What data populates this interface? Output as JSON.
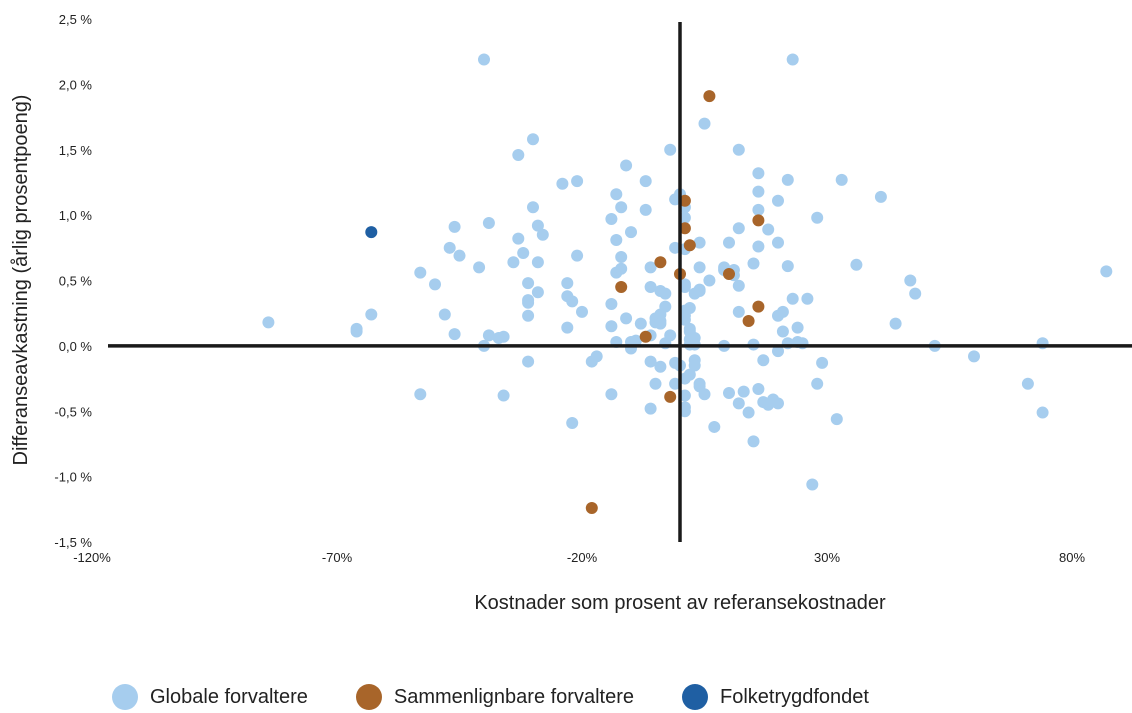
{
  "chart_data": {
    "type": "scatter",
    "xlabel": "Kostnader som prosent av referansekostnader",
    "ylabel": "Differanseavkastning (årlig prosentpoeng)",
    "xlim": [
      -120,
      90
    ],
    "ylim": [
      -1.5,
      2.5
    ],
    "x_ticks": [
      -120,
      -70,
      -20,
      30,
      80
    ],
    "x_tick_labels": [
      "-120%",
      "-70%",
      "-20%",
      "30%",
      "80%"
    ],
    "y_ticks": [
      2.5,
      2.0,
      1.5,
      1.0,
      0.5,
      0.0,
      -0.5,
      -1.0,
      -1.5
    ],
    "y_tick_labels": [
      "2,5 %",
      "2,0 %",
      "1,5 %",
      "1,0 %",
      "0,5 %",
      "0,0 %",
      "-0,5 %",
      "-1,0 %",
      "-1,5 %"
    ],
    "grid": false,
    "legend_position": "bottom",
    "series": [
      {
        "name": "Globale forvaltere",
        "color": "#a6cdee",
        "points": [
          [
            -84,
            0.18
          ],
          [
            -66,
            0.13
          ],
          [
            -66,
            0.11
          ],
          [
            -63,
            0.24
          ],
          [
            -53,
            0.56
          ],
          [
            -53,
            -0.37
          ],
          [
            -50,
            0.47
          ],
          [
            -48,
            0.24
          ],
          [
            -47,
            0.75
          ],
          [
            -46,
            0.91
          ],
          [
            -46,
            0.09
          ],
          [
            -45,
            0.69
          ],
          [
            -41,
            0.6
          ],
          [
            -40,
            2.19
          ],
          [
            -40,
            0.0
          ],
          [
            -39,
            0.94
          ],
          [
            -39,
            0.08
          ],
          [
            -37,
            0.06
          ],
          [
            -36,
            0.07
          ],
          [
            -36,
            -0.38
          ],
          [
            -34,
            0.64
          ],
          [
            -33,
            1.46
          ],
          [
            -33,
            0.82
          ],
          [
            -32,
            0.71
          ],
          [
            -31,
            0.48
          ],
          [
            -31,
            0.35
          ],
          [
            -31,
            0.33
          ],
          [
            -31,
            0.23
          ],
          [
            -31,
            -0.12
          ],
          [
            -30,
            1.58
          ],
          [
            -30,
            1.06
          ],
          [
            -29,
            0.92
          ],
          [
            -29,
            0.64
          ],
          [
            -29,
            0.41
          ],
          [
            -28,
            0.85
          ],
          [
            -24,
            1.24
          ],
          [
            -23,
            0.48
          ],
          [
            -23,
            0.38
          ],
          [
            -23,
            0.14
          ],
          [
            -22,
            -0.59
          ],
          [
            -22,
            0.34
          ],
          [
            -21,
            1.26
          ],
          [
            -21,
            0.69
          ],
          [
            -20,
            0.26
          ],
          [
            -18,
            -0.12
          ],
          [
            -17,
            -0.08
          ],
          [
            -14,
            -0.37
          ],
          [
            -14,
            0.97
          ],
          [
            -14,
            0.32
          ],
          [
            -14,
            0.15
          ],
          [
            -13,
            0.81
          ],
          [
            -13,
            1.16
          ],
          [
            -13,
            0.56
          ],
          [
            -13,
            0.03
          ],
          [
            -12,
            1.06
          ],
          [
            -12,
            0.68
          ],
          [
            -12,
            0.59
          ],
          [
            -11,
            0.21
          ],
          [
            -11,
            1.38
          ],
          [
            -10,
            0.87
          ],
          [
            -10,
            0.03
          ],
          [
            -10,
            -0.02
          ],
          [
            -9,
            0.04
          ],
          [
            -8,
            0.17
          ],
          [
            -7,
            1.26
          ],
          [
            -7,
            1.04
          ],
          [
            -6,
            0.08
          ],
          [
            -6,
            -0.12
          ],
          [
            -6,
            0.6
          ],
          [
            -6,
            0.45
          ],
          [
            -6,
            -0.48
          ],
          [
            -5,
            0.21
          ],
          [
            -5,
            0.18
          ],
          [
            -5,
            -0.29
          ],
          [
            -4,
            0.24
          ],
          [
            -4,
            0.19
          ],
          [
            -4,
            -0.16
          ],
          [
            -4,
            0.17
          ],
          [
            -4,
            0.42
          ],
          [
            -3,
            0.4
          ],
          [
            -3,
            0.3
          ],
          [
            -3,
            0.02
          ],
          [
            -2,
            1.5
          ],
          [
            -2,
            0.08
          ],
          [
            -1,
            0.75
          ],
          [
            -1,
            1.12
          ],
          [
            -1,
            -0.29
          ],
          [
            -1,
            -0.13
          ],
          [
            0,
            1.16
          ],
          [
            0,
            1.13
          ],
          [
            0,
            -0.15
          ],
          [
            1,
            0.74
          ],
          [
            1,
            0.47
          ],
          [
            1,
            0.45
          ],
          [
            1,
            0.27
          ],
          [
            1,
            -0.25
          ],
          [
            1,
            -0.47
          ],
          [
            1,
            1.06
          ],
          [
            1,
            -0.38
          ],
          [
            1,
            -0.5
          ],
          [
            1,
            0.98
          ],
          [
            1,
            0.23
          ],
          [
            1,
            0.2
          ],
          [
            2,
            0.13
          ],
          [
            2,
            0.11
          ],
          [
            2,
            0.05
          ],
          [
            2,
            0.01
          ],
          [
            2,
            -0.22
          ],
          [
            2,
            0.29
          ],
          [
            3,
            0.06
          ],
          [
            3,
            0.4
          ],
          [
            3,
            -0.11
          ],
          [
            3,
            -0.15
          ],
          [
            3,
            0.01
          ],
          [
            4,
            0.79
          ],
          [
            4,
            0.6
          ],
          [
            4,
            -0.29
          ],
          [
            4,
            -0.31
          ],
          [
            4,
            0.42
          ],
          [
            4,
            0.43
          ],
          [
            5,
            1.7
          ],
          [
            5,
            -0.37
          ],
          [
            6,
            0.5
          ],
          [
            7,
            -0.62
          ],
          [
            9,
            0.0
          ],
          [
            9,
            0.6
          ],
          [
            9,
            0.58
          ],
          [
            10,
            0.79
          ],
          [
            10,
            -0.36
          ],
          [
            11,
            0.58
          ],
          [
            11,
            0.54
          ],
          [
            12,
            1.5
          ],
          [
            12,
            0.9
          ],
          [
            12,
            0.46
          ],
          [
            12,
            0.26
          ],
          [
            12,
            -0.44
          ],
          [
            13,
            -0.35
          ],
          [
            14,
            -0.51
          ],
          [
            15,
            0.63
          ],
          [
            15,
            0.01
          ],
          [
            15,
            -0.73
          ],
          [
            16,
            1.32
          ],
          [
            16,
            1.18
          ],
          [
            16,
            0.76
          ],
          [
            16,
            1.04
          ],
          [
            16,
            -0.33
          ],
          [
            17,
            -0.43
          ],
          [
            17,
            -0.11
          ],
          [
            18,
            -0.45
          ],
          [
            18,
            0.89
          ],
          [
            19,
            -0.41
          ],
          [
            20,
            1.11
          ],
          [
            20,
            0.79
          ],
          [
            20,
            0.23
          ],
          [
            20,
            -0.44
          ],
          [
            20,
            -0.04
          ],
          [
            21,
            0.26
          ],
          [
            21,
            0.11
          ],
          [
            22,
            0.02
          ],
          [
            22,
            1.27
          ],
          [
            22,
            0.61
          ],
          [
            23,
            2.19
          ],
          [
            23,
            0.36
          ],
          [
            24,
            0.14
          ],
          [
            24,
            0.03
          ],
          [
            25,
            0.02
          ],
          [
            26,
            0.36
          ],
          [
            27,
            -1.06
          ],
          [
            28,
            0.98
          ],
          [
            28,
            -0.29
          ],
          [
            29,
            -0.13
          ],
          [
            32,
            -0.56
          ],
          [
            33,
            1.27
          ],
          [
            36,
            0.62
          ],
          [
            41,
            1.14
          ],
          [
            44,
            0.17
          ],
          [
            47,
            0.5
          ],
          [
            48,
            0.4
          ],
          [
            52,
            0.0
          ],
          [
            60,
            -0.08
          ],
          [
            71,
            -0.29
          ],
          [
            74,
            0.02
          ],
          [
            74,
            -0.51
          ],
          [
            87,
            0.57
          ]
        ]
      },
      {
        "name": "Sammenlignbare forvaltere",
        "color": "#a8652a",
        "points": [
          [
            6,
            1.91
          ],
          [
            1,
            1.11
          ],
          [
            1,
            0.9
          ],
          [
            2,
            0.77
          ],
          [
            -4,
            0.64
          ],
          [
            0,
            0.55
          ],
          [
            -12,
            0.45
          ],
          [
            -2,
            -0.39
          ],
          [
            -7,
            0.07
          ],
          [
            -18,
            -1.24
          ],
          [
            16,
            0.96
          ],
          [
            10,
            0.55
          ],
          [
            16,
            0.3
          ],
          [
            14,
            0.19
          ]
        ]
      },
      {
        "name": "Folketrygdfondet",
        "color": "#1f5fa3",
        "points": [
          [
            -63,
            0.87
          ]
        ]
      }
    ]
  }
}
